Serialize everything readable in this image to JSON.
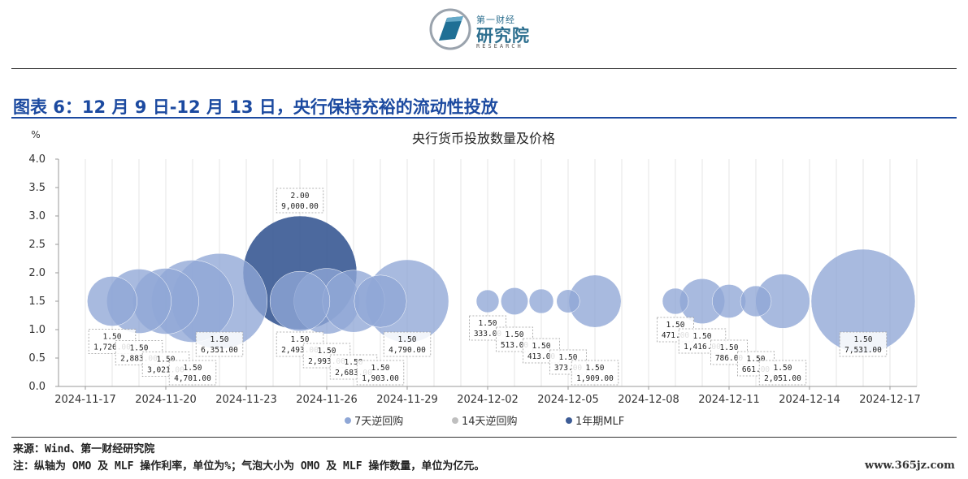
{
  "header": {
    "logo_line1": "第一财经",
    "logo_line2": "研究院",
    "logo_line3": "RESEARCH",
    "figure_title": "图表 6：12 月 9 日-12 月 13 日，央行保持充裕的流动性投放"
  },
  "colors": {
    "title_blue": "#1c4aa0",
    "series_7d": "#8fa7d6",
    "series_14d": "#bfbfbf",
    "series_mlf": "#3d5c96"
  },
  "chart_data": {
    "type": "scatter",
    "title": "央行货币投放数量及价格",
    "ylabel": "%",
    "ylim": [
      0,
      4.0
    ],
    "yticks": [
      "0.0",
      "0.5",
      "1.0",
      "1.5",
      "2.0",
      "2.5",
      "3.0",
      "3.5",
      "4.0"
    ],
    "xlim": [
      "2024-11-16",
      "2024-12-18"
    ],
    "xticks": [
      "2024-11-17",
      "2024-11-20",
      "2024-11-23",
      "2024-11-26",
      "2024-11-29",
      "2024-12-02",
      "2024-12-05",
      "2024-12-08",
      "2024-12-11",
      "2024-12-14",
      "2024-12-17"
    ],
    "grid": "vertical",
    "legend_position": "bottom",
    "size_unit": "亿元",
    "series": [
      {
        "name": "7天逆回购",
        "color": "#8fa7d6",
        "points": [
          {
            "x": "2024-11-18",
            "y": 1.5,
            "size": 1726.0,
            "label_rate": "1.50",
            "label_size": "1,726.00"
          },
          {
            "x": "2024-11-19",
            "y": 1.5,
            "size": 2883.0,
            "label_rate": "1.50",
            "label_size": "2,883.00"
          },
          {
            "x": "2024-11-20",
            "y": 1.5,
            "size": 3021.0,
            "label_rate": "1.50",
            "label_size": "3,021.00"
          },
          {
            "x": "2024-11-21",
            "y": 1.5,
            "size": 4701.0,
            "label_rate": "1.50",
            "label_size": "4,701.00"
          },
          {
            "x": "2024-11-22",
            "y": 1.5,
            "size": 6351.0,
            "label_rate": "1.50",
            "label_size": "6,351.00"
          },
          {
            "x": "2024-11-25",
            "y": 1.5,
            "size": 2493.0,
            "label_rate": "1.50",
            "label_size": "2,493.00"
          },
          {
            "x": "2024-11-26",
            "y": 1.5,
            "size": 2993.0,
            "label_rate": "1.50",
            "label_size": "2,993.00"
          },
          {
            "x": "2024-11-27",
            "y": 1.5,
            "size": 2683.0,
            "label_rate": "1.50",
            "label_size": "2,683.00"
          },
          {
            "x": "2024-11-28",
            "y": 1.5,
            "size": 1903.0,
            "label_rate": "1.50",
            "label_size": "1,903.00"
          },
          {
            "x": "2024-11-29",
            "y": 1.5,
            "size": 4790.0,
            "label_rate": "1.50",
            "label_size": "4,790.00"
          },
          {
            "x": "2024-12-02",
            "y": 1.5,
            "size": 333.0,
            "label_rate": "1.50",
            "label_size": "333.00"
          },
          {
            "x": "2024-12-03",
            "y": 1.5,
            "size": 513.0,
            "label_rate": "1.50",
            "label_size": "513.00"
          },
          {
            "x": "2024-12-04",
            "y": 1.5,
            "size": 413.0,
            "label_rate": "1.50",
            "label_size": "413.00"
          },
          {
            "x": "2024-12-05",
            "y": 1.5,
            "size": 373.0,
            "label_rate": "1.50",
            "label_size": "373.00"
          },
          {
            "x": "2024-12-06",
            "y": 1.5,
            "size": 1909.0,
            "label_rate": "1.50",
            "label_size": "1,909.00"
          },
          {
            "x": "2024-12-09",
            "y": 1.5,
            "size": 471.0,
            "label_rate": "1.50",
            "label_size": "471.00"
          },
          {
            "x": "2024-12-10",
            "y": 1.5,
            "size": 1416.0,
            "label_rate": "1.50",
            "label_size": "1,416.00"
          },
          {
            "x": "2024-12-11",
            "y": 1.5,
            "size": 786.0,
            "label_rate": "1.50",
            "label_size": "786.00"
          },
          {
            "x": "2024-12-12",
            "y": 1.5,
            "size": 661.0,
            "label_rate": "1.50",
            "label_size": "661.00"
          },
          {
            "x": "2024-12-13",
            "y": 1.5,
            "size": 2051.0,
            "label_rate": "1.50",
            "label_size": "2,051.00"
          },
          {
            "x": "2024-12-16",
            "y": 1.5,
            "size": 7531.0,
            "label_rate": "1.50",
            "label_size": "7,531.00"
          }
        ]
      },
      {
        "name": "14天逆回购",
        "color": "#bfbfbf",
        "points": []
      },
      {
        "name": "1年期MLF",
        "color": "#3d5c96",
        "points": [
          {
            "x": "2024-11-25",
            "y": 2.0,
            "size": 9000.0,
            "label_rate": "2.00",
            "label_size": "9,000.00"
          }
        ]
      }
    ]
  },
  "footer": {
    "source": "来源：Wind、第一财经研究院",
    "note": "注：纵轴为 OMO 及 MLF 操作利率，单位为%；气泡大小为 OMO 及 MLF 操作数量，单位为亿元。",
    "watermark": "www.365jz.com"
  }
}
